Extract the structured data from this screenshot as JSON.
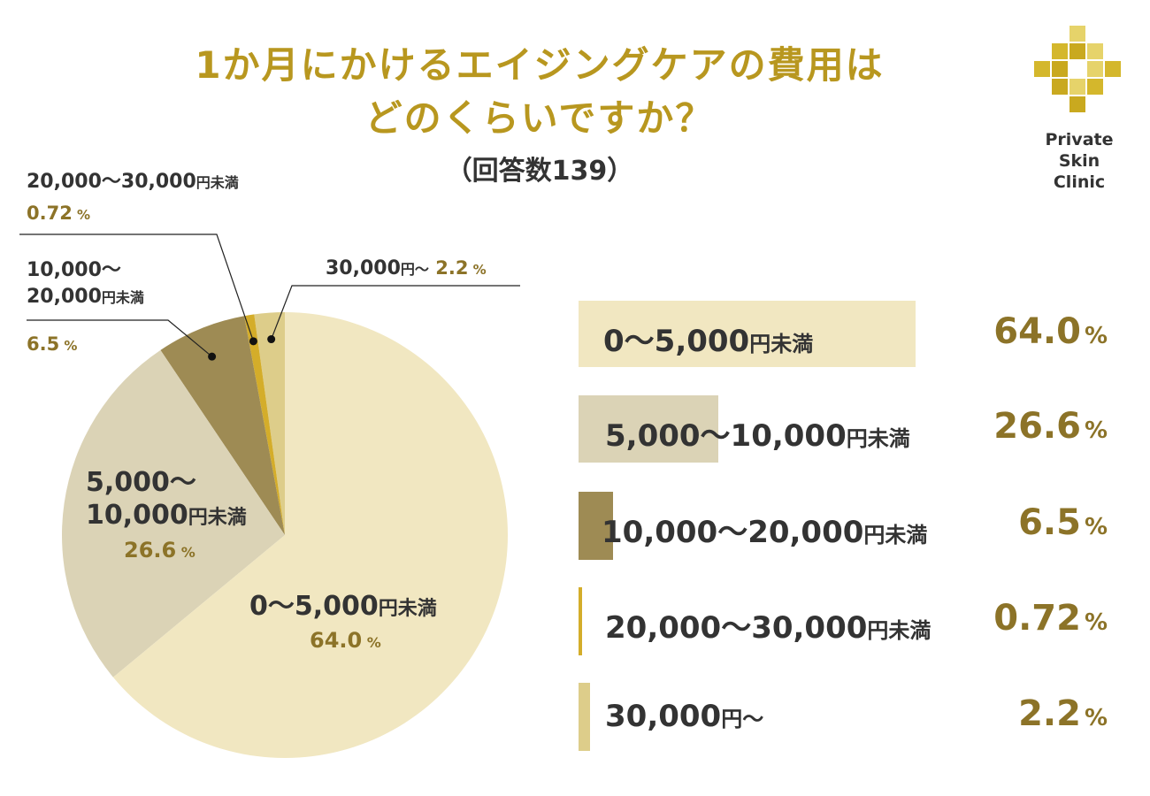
{
  "title_line1": "1か月にかけるエイジングケアの費用は",
  "title_line2": "どのくらいですか？",
  "subtitle": "（回答数139）",
  "logo": {
    "line1": "Private",
    "line2": "Skin",
    "line3": "Clinic",
    "icon": "gold-cross-mosaic-icon"
  },
  "colors": {
    "title": "#b8971f",
    "percent": "#8c7328",
    "text": "#333333"
  },
  "chart_data": {
    "type": "pie",
    "total_responses": 139,
    "slices": [
      {
        "label": "0〜5,000円未満",
        "value": 64.0,
        "value_text": "64.0",
        "color": "#f1e7c1"
      },
      {
        "label": "5,000〜10,000円未満",
        "value": 26.6,
        "value_text": "26.6",
        "color": "#dbd3b6"
      },
      {
        "label": "10,000〜20,000円未満",
        "value": 6.5,
        "value_text": "6.5",
        "color": "#9e8b54"
      },
      {
        "label": "20,000〜30,000円未満",
        "value": 0.72,
        "value_text": "0.72",
        "color": "#d4ad2a"
      },
      {
        "label": "30,000円〜",
        "value": 2.2,
        "value_text": "2.2",
        "color": "#ddcd8a"
      }
    ],
    "percent_symbol": "%"
  }
}
